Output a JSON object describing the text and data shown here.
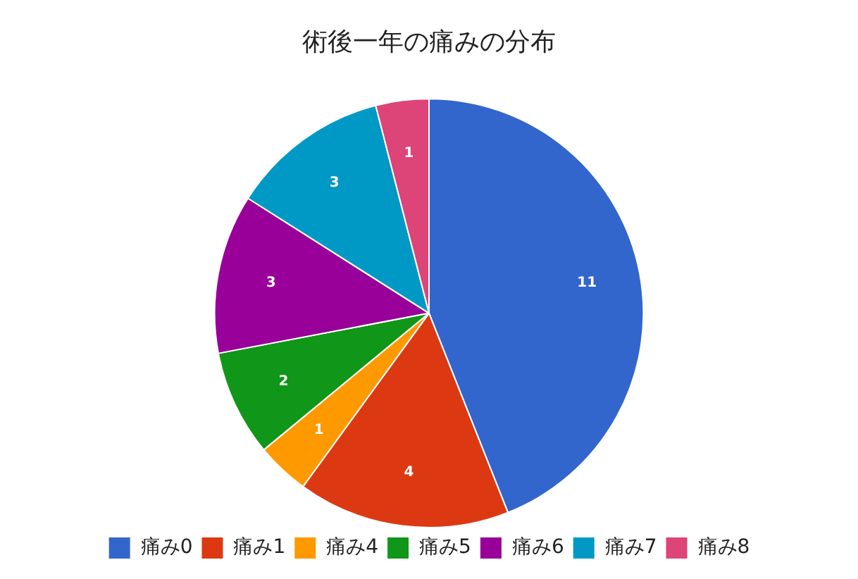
{
  "chart_data": {
    "type": "pie",
    "title": "術後一年の痛みの分布",
    "categories": [
      "痛み0",
      "痛み1",
      "痛み4",
      "痛み5",
      "痛み6",
      "痛み7",
      "痛み8"
    ],
    "values": [
      11,
      4,
      1,
      2,
      3,
      3,
      1
    ],
    "colors": [
      "#3366cc",
      "#dc3912",
      "#ff9900",
      "#109618",
      "#990099",
      "#0099c6",
      "#dd4477"
    ],
    "data_labels": true,
    "legend": "bottom"
  }
}
